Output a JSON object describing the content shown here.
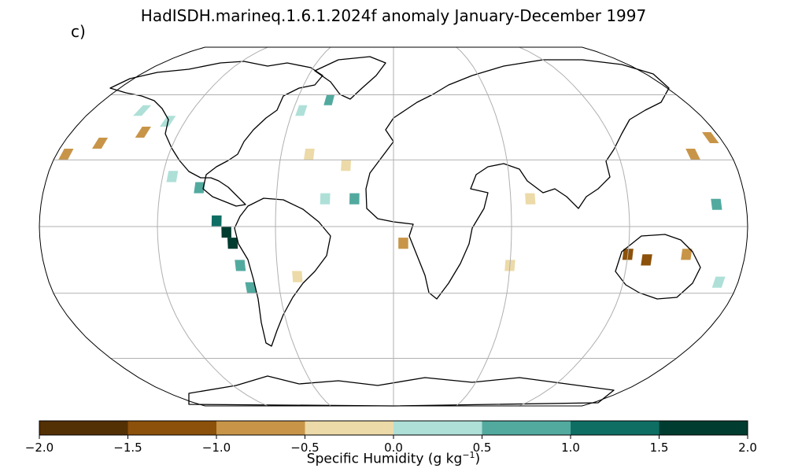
{
  "title": "HadISDH.marineq.1.6.1.2024f anomaly January-December 1997",
  "panel_label": "c)",
  "colorbar": {
    "label": "Specific Humidity (g kg",
    "label_sup": "−1",
    "label_end": ")",
    "ticks": [
      "−2.0",
      "−1.5",
      "−1.0",
      "−0.5",
      "0.0",
      "0.5",
      "1.0",
      "1.5",
      "2.0"
    ],
    "bins": [
      {
        "range": [
          -2.0,
          -1.5
        ],
        "color": "#543005"
      },
      {
        "range": [
          -1.5,
          -1.0
        ],
        "color": "#8c510a"
      },
      {
        "range": [
          -1.0,
          -0.5
        ],
        "color": "#c89548"
      },
      {
        "range": [
          -0.5,
          0.0
        ],
        "color": "#ecdaa8"
      },
      {
        "range": [
          0.0,
          0.5
        ],
        "color": "#aee0d8"
      },
      {
        "range": [
          0.5,
          1.0
        ],
        "color": "#52aa9f"
      },
      {
        "range": [
          1.0,
          1.5
        ],
        "color": "#0f6e64"
      },
      {
        "range": [
          1.5,
          2.0
        ],
        "color": "#003c30"
      }
    ]
  },
  "map": {
    "projection": "Robinson",
    "grid": true,
    "cells": [
      {
        "lon": -140,
        "lat": 42.5,
        "value": -0.7
      },
      {
        "lon": -160,
        "lat": 37.5,
        "value": -0.8
      },
      {
        "lon": -175,
        "lat": 32.5,
        "value": -0.8
      },
      {
        "lon": -150,
        "lat": 52.5,
        "value": 0.3
      },
      {
        "lon": -130,
        "lat": 47.5,
        "value": 0.3
      },
      {
        "lon": -115,
        "lat": 22.5,
        "value": 0.3
      },
      {
        "lon": -100,
        "lat": 17.5,
        "value": 0.7
      },
      {
        "lon": -90,
        "lat": 2.5,
        "value": 1.3
      },
      {
        "lon": -85,
        "lat": -2.5,
        "value": 1.8
      },
      {
        "lon": -82,
        "lat": -7.5,
        "value": 1.9
      },
      {
        "lon": -79,
        "lat": -17.5,
        "value": 0.8
      },
      {
        "lon": -75,
        "lat": -27.5,
        "value": 0.7
      },
      {
        "lon": -55,
        "lat": 52.5,
        "value": 0.4
      },
      {
        "lon": -40,
        "lat": 57.5,
        "value": 0.8
      },
      {
        "lon": -45,
        "lat": 32.5,
        "value": -0.3
      },
      {
        "lon": -25,
        "lat": 27.5,
        "value": -0.3
      },
      {
        "lon": -35,
        "lat": 12.5,
        "value": 0.3
      },
      {
        "lon": -20,
        "lat": 12.5,
        "value": 0.7
      },
      {
        "lon": -50,
        "lat": -22.5,
        "value": -0.3
      },
      {
        "lon": 5,
        "lat": -7.5,
        "value": -0.8
      },
      {
        "lon": 70,
        "lat": 12.5,
        "value": -0.3
      },
      {
        "lon": 60,
        "lat": -17.5,
        "value": -0.3
      },
      {
        "lon": 120,
        "lat": -12.5,
        "value": -1.4
      },
      {
        "lon": 130,
        "lat": -15,
        "value": -1.2
      },
      {
        "lon": 150,
        "lat": -12.5,
        "value": -0.9
      },
      {
        "lon": 160,
        "lat": 32.5,
        "value": -0.8
      },
      {
        "lon": 175,
        "lat": 40,
        "value": -0.8
      },
      {
        "lon": 165,
        "lat": 10,
        "value": 0.6
      },
      {
        "lon": 170,
        "lat": -25,
        "value": 0.3
      }
    ]
  }
}
